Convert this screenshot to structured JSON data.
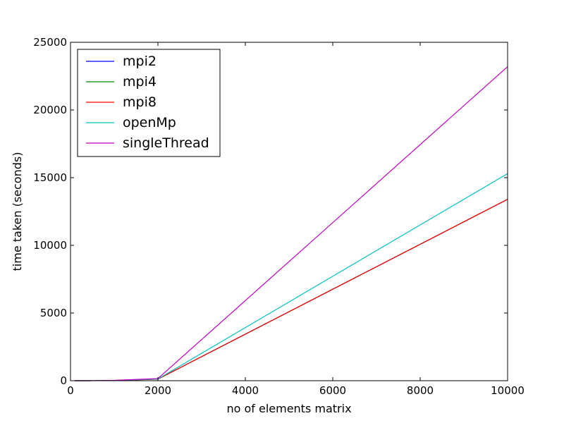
{
  "chart_data": {
    "type": "line",
    "title": "",
    "xlabel": "no of elements matrix",
    "ylabel": "time taken (seconds)",
    "xlim": [
      0,
      10000
    ],
    "ylim": [
      0,
      25000
    ],
    "xticks": [
      0,
      2000,
      4000,
      6000,
      8000,
      10000
    ],
    "yticks": [
      0,
      5000,
      10000,
      15000,
      20000,
      25000
    ],
    "grid": false,
    "legend_position": "top-left",
    "series": [
      {
        "name": "mpi2",
        "color": "#0000ff",
        "x": [
          100,
          500,
          1000,
          2000,
          10000
        ],
        "y": [
          0,
          2,
          15,
          120,
          13400
        ]
      },
      {
        "name": "mpi4",
        "color": "#008000",
        "x": [
          100,
          500,
          1000,
          2000,
          10000
        ],
        "y": [
          0,
          2,
          14,
          115,
          13400
        ]
      },
      {
        "name": "mpi8",
        "color": "#ff0000",
        "x": [
          100,
          500,
          1000,
          2000,
          10000
        ],
        "y": [
          0,
          2,
          14,
          115,
          13400
        ]
      },
      {
        "name": "openMp",
        "color": "#00bfbf",
        "x": [
          100,
          500,
          1000,
          2000,
          10000
        ],
        "y": [
          0,
          3,
          20,
          130,
          15300
        ]
      },
      {
        "name": "singleThread",
        "color": "#bf00bf",
        "x": [
          100,
          500,
          1000,
          2000,
          10000
        ],
        "y": [
          0,
          4,
          25,
          160,
          23200
        ]
      }
    ]
  }
}
